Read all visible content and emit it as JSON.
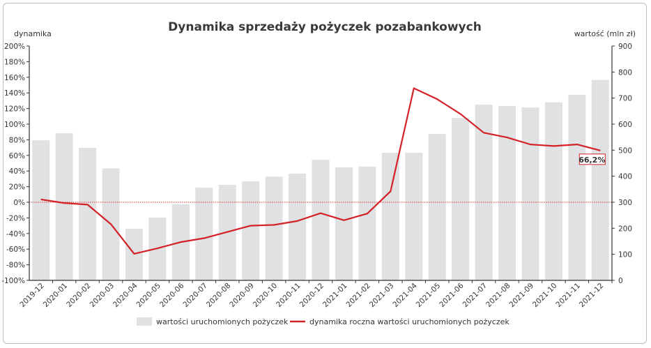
{
  "chart_data": {
    "type": "bar+line",
    "title": "Dynamika sprzedaży pożyczek pozabankowych",
    "ylabel_left": "dynamika",
    "ylabel_right": "wartość (mln zł)",
    "ylim_left": [
      -100,
      200
    ],
    "ylim_right": [
      0,
      900
    ],
    "yticks_left": [
      "-100%",
      "-80%",
      "-60%",
      "-40%",
      "-20%",
      "0%",
      "20%",
      "40%",
      "60%",
      "80%",
      "100%",
      "120%",
      "140%",
      "160%",
      "180%",
      "200%"
    ],
    "yticks_right": [
      "0",
      "100",
      "200",
      "300",
      "400",
      "500",
      "600",
      "700",
      "800",
      "900"
    ],
    "categories": [
      "2019-12",
      "2020-01",
      "2020-02",
      "2020-03",
      "2020-04",
      "2020-05",
      "2020-06",
      "2020-07",
      "2020-08",
      "2020-09",
      "2020-10",
      "2020-11",
      "2020-12",
      "2021-01",
      "2021-02",
      "2021-03",
      "2021-04",
      "2021-05",
      "2021-06",
      "2021-07",
      "2021-08",
      "2021-09",
      "2021-10",
      "2021-11",
      "2021-12"
    ],
    "series": [
      {
        "name": "wartości uruchomionych pożyczek",
        "type": "bar",
        "axis": "right",
        "color": "#dfe1e2",
        "values": [
          538,
          565,
          509,
          430,
          198,
          241,
          292,
          356,
          367,
          380,
          398,
          410,
          463,
          434,
          437,
          490,
          490,
          562,
          624,
          675,
          670,
          664,
          684,
          713,
          770
        ]
      },
      {
        "name": "dynamika roczna wartości uruchomionych pożyczek",
        "type": "line",
        "axis": "left",
        "color": "#d42027",
        "values": [
          3.6,
          -1,
          -3,
          -28,
          -66,
          -59,
          -51,
          -46,
          -38,
          -30,
          -29,
          -24,
          -14,
          -23,
          -14.6,
          14,
          146,
          132,
          113,
          89,
          83,
          74,
          72,
          74,
          66.2
        ]
      }
    ],
    "annotation": {
      "label": "66,2%",
      "category": "2021-12"
    },
    "reference_line": {
      "value": 0,
      "axis": "left",
      "color": "#e03030",
      "style": "dotted"
    },
    "legend_position": "bottom",
    "grid": false
  }
}
